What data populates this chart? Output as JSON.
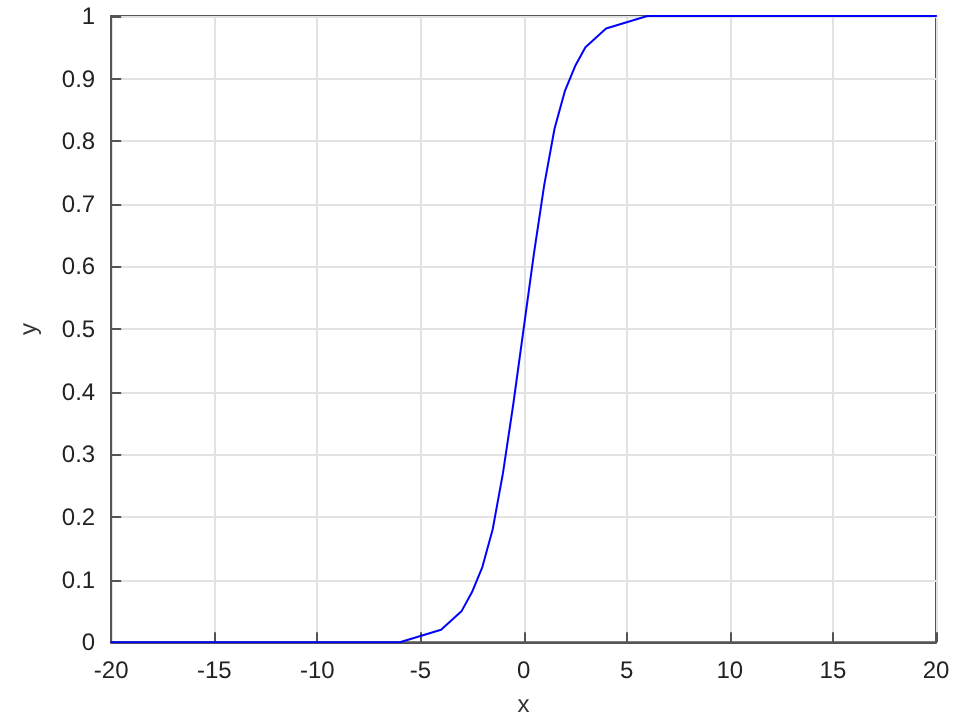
{
  "chart_data": {
    "type": "line",
    "xlabel": "x",
    "ylabel": "y",
    "series": [
      {
        "color": "#0000ff",
        "x": [
          -20,
          -15,
          -10,
          -8,
          -7,
          -6,
          -5,
          -4,
          -3,
          -2.5,
          -2,
          -1.5,
          -1,
          -0.5,
          0,
          0.5,
          1,
          1.5,
          2,
          2.5,
          3,
          4,
          5,
          6,
          7,
          8,
          10,
          15,
          20
        ],
        "values": [
          0,
          0,
          0,
          0,
          0,
          0,
          0.01,
          0.02,
          0.05,
          0.08,
          0.12,
          0.18,
          0.27,
          0.38,
          0.5,
          0.62,
          0.73,
          0.82,
          0.88,
          0.92,
          0.95,
          0.98,
          0.99,
          1,
          1,
          1,
          1,
          1,
          1
        ]
      }
    ],
    "xlim": [
      -20,
      20
    ],
    "ylim": [
      0,
      1
    ],
    "xticks": [
      -20,
      -15,
      -10,
      -5,
      0,
      5,
      10,
      15,
      20
    ],
    "yticks": [
      0,
      0.1,
      0.2,
      0.3,
      0.4,
      0.5,
      0.6,
      0.7,
      0.8,
      0.9,
      1
    ],
    "grid": true,
    "marker": "none",
    "line_style": "solid"
  }
}
